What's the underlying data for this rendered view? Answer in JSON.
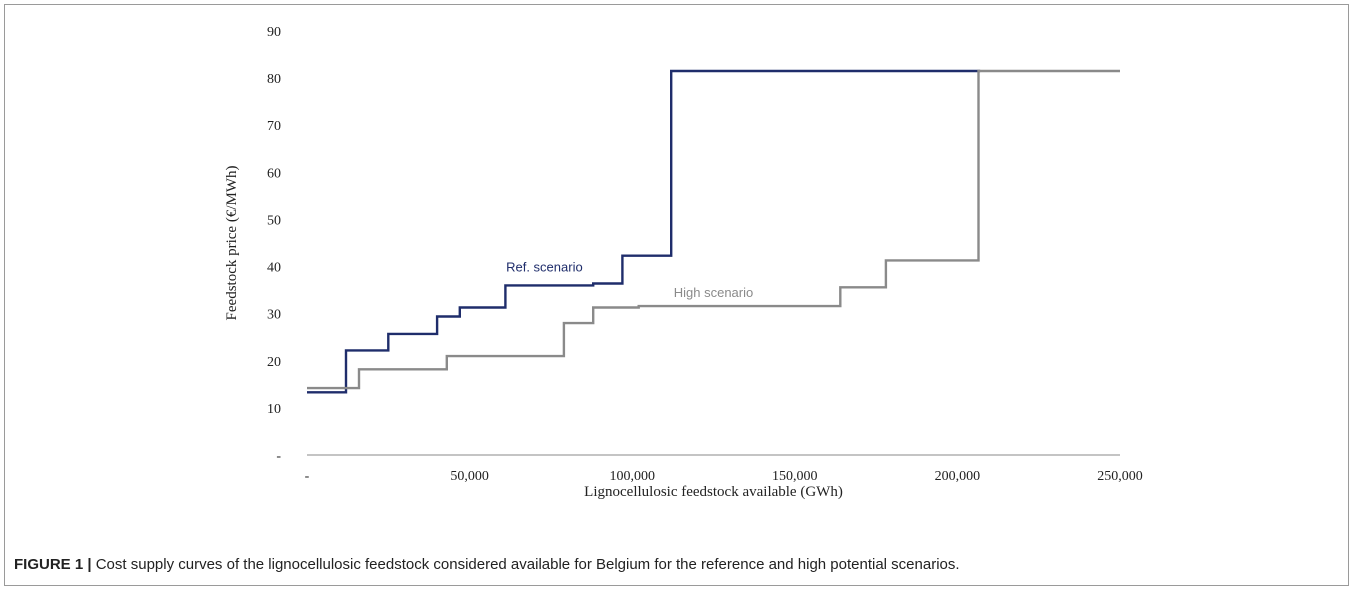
{
  "caption": {
    "label": "FIGURE 1 |",
    "text": "Cost supply curves of the lignocellulosic feedstock considered available for Belgium for the reference and high potential scenarios."
  },
  "chart_data": {
    "type": "line",
    "step": true,
    "title": "",
    "xlabel": "Lignocellulosic feedstock available (GWh)",
    "ylabel": "Feedstock price (€/MWh)",
    "xlim": [
      0,
      250000
    ],
    "ylim": [
      0,
      90
    ],
    "x_ticks": [
      0,
      50000,
      100000,
      150000,
      200000,
      250000
    ],
    "x_tick_labels": [
      "-",
      "50,000",
      "100,000",
      "150,000",
      "200,000",
      "250,000"
    ],
    "y_ticks": [
      0,
      10,
      20,
      30,
      40,
      50,
      60,
      70,
      80,
      90
    ],
    "y_tick_labels": [
      "-",
      "10",
      "20",
      "30",
      "40",
      "50",
      "60",
      "70",
      "80",
      "90"
    ],
    "grid": false,
    "legend": "none",
    "series": [
      {
        "name": "Ref. scenario",
        "color": "#1f2d6b",
        "x": [
          0,
          12000,
          12000,
          25000,
          25000,
          40000,
          40000,
          47000,
          47000,
          61000,
          61000,
          88000,
          88000,
          97000,
          97000,
          112000,
          112000,
          207000
        ],
        "y": [
          13.3,
          13.3,
          22.2,
          22.2,
          25.7,
          25.7,
          29.4,
          29.4,
          31.3,
          31.3,
          36.0,
          36.0,
          36.4,
          36.4,
          42.3,
          42.3,
          81.5,
          81.5
        ]
      },
      {
        "name": "High scenario",
        "color": "#8a8a8a",
        "x": [
          0,
          16000,
          16000,
          43000,
          43000,
          79000,
          79000,
          88000,
          88000,
          102000,
          102000,
          164000,
          164000,
          178000,
          178000,
          206500,
          206500,
          250000
        ],
        "y": [
          14.2,
          14.2,
          18.2,
          18.2,
          21.0,
          21.0,
          28.0,
          28.0,
          31.3,
          31.3,
          31.6,
          31.6,
          35.6,
          35.6,
          41.3,
          41.3,
          81.5,
          81.5
        ]
      }
    ],
    "annotations": [
      {
        "text": "Ref. scenario",
        "series": 0,
        "at_x": 73000,
        "at_y": 39.0
      },
      {
        "text": "High scenario",
        "series": 1,
        "at_x": 125000,
        "at_y": 33.5
      }
    ]
  }
}
